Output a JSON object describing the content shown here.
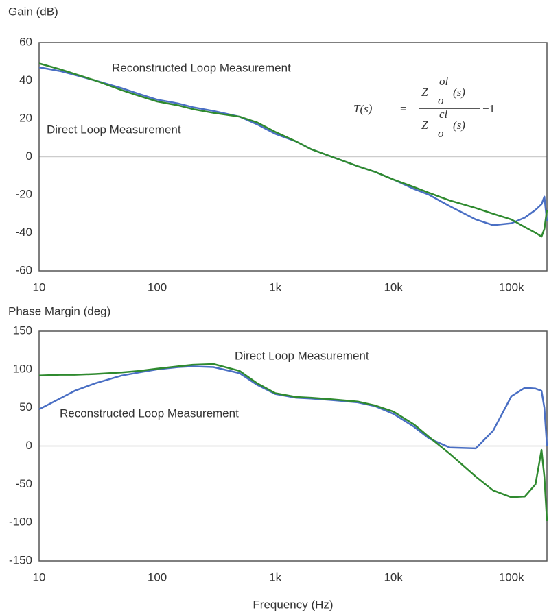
{
  "chart_data": [
    {
      "type": "line",
      "y_label": "Gain (dB)",
      "log_x": true,
      "grid": false,
      "zero_line": true,
      "xlim": [
        10,
        200000
      ],
      "ylim": [
        -60,
        60
      ],
      "xticks": [
        10,
        100,
        {
          "value": 1000,
          "label": "1k"
        },
        {
          "value": 10000,
          "label": "10k"
        },
        {
          "value": 100000,
          "label": "100k"
        }
      ],
      "yticks": [
        60,
        40,
        20,
        0,
        -20,
        -40,
        -60
      ],
      "x": [
        10,
        15,
        20,
        30,
        50,
        70,
        100,
        150,
        200,
        300,
        500,
        700,
        1000,
        1500,
        2000,
        3000,
        5000,
        7000,
        10000,
        15000,
        20000,
        30000,
        50000,
        70000,
        100000,
        130000,
        160000,
        180000,
        190000,
        200000
      ],
      "series": [
        {
          "name": "Reconstructed Loop Measurement",
          "color": "#4a6fc4",
          "values": [
            47,
            45,
            43,
            40,
            36,
            33,
            30,
            28,
            26,
            24,
            21,
            17,
            12,
            8,
            4,
            0,
            -5,
            -8,
            -12,
            -17,
            -20,
            -26,
            -33,
            -36,
            -35,
            -32,
            -28,
            -25,
            -21,
            -34
          ]
        },
        {
          "name": "Direct Loop Measurement",
          "color": "#2f8a2f",
          "values": [
            49,
            46,
            43.5,
            40,
            35,
            32,
            29,
            27,
            25,
            23,
            21,
            18,
            13,
            8,
            4,
            0,
            -5,
            -8,
            -12,
            -16,
            -19,
            -23,
            -27,
            -30,
            -33,
            -37,
            -40,
            -42,
            -38,
            -28
          ]
        }
      ],
      "equation": {
        "lhs": "T(s)",
        "equals": "=",
        "color": "#3f5fb5",
        "tail": "−1",
        "numerator": {
          "base": "Z",
          "sup": "ol",
          "sub": "o",
          "arg": "(s)",
          "color": "#e8201c"
        },
        "denominator": {
          "base": "Z",
          "sup": "cl",
          "sub": "o",
          "arg": "(s)",
          "color": "#2f8a2f"
        }
      }
    },
    {
      "type": "line",
      "y_label": "Phase Margin (deg)",
      "x_label": "Frequency (Hz)",
      "log_x": true,
      "grid": false,
      "zero_line": true,
      "xlim": [
        10,
        200000
      ],
      "ylim": [
        -150,
        150
      ],
      "xticks": [
        10,
        100,
        {
          "value": 1000,
          "label": "1k"
        },
        {
          "value": 10000,
          "label": "10k"
        },
        {
          "value": 100000,
          "label": "100k"
        }
      ],
      "yticks": [
        150,
        100,
        50,
        0,
        -50,
        -100,
        -150
      ],
      "x": [
        10,
        15,
        20,
        30,
        50,
        70,
        100,
        150,
        200,
        300,
        500,
        700,
        1000,
        1500,
        2000,
        3000,
        5000,
        7000,
        10000,
        15000,
        20000,
        30000,
        50000,
        70000,
        100000,
        130000,
        160000,
        180000,
        190000,
        200000
      ],
      "series": [
        {
          "name": "Reconstructed Loop Measurement",
          "color": "#4a6fc4",
          "values": [
            48,
            62,
            72,
            82,
            92,
            96,
            100,
            103,
            104,
            103,
            95,
            80,
            68,
            63,
            62,
            60,
            57,
            52,
            42,
            25,
            10,
            -2,
            -3,
            20,
            65,
            76,
            75,
            72,
            50,
            0
          ]
        },
        {
          "name": "Direct Loop Measurement",
          "color": "#2f8a2f",
          "values": [
            92,
            93,
            93,
            94,
            96,
            98,
            101,
            104,
            106,
            107,
            98,
            82,
            69,
            64,
            63,
            61,
            58,
            53,
            45,
            28,
            12,
            -10,
            -40,
            -58,
            -67,
            -66,
            -50,
            -5,
            -40,
            -98
          ]
        }
      ]
    }
  ]
}
